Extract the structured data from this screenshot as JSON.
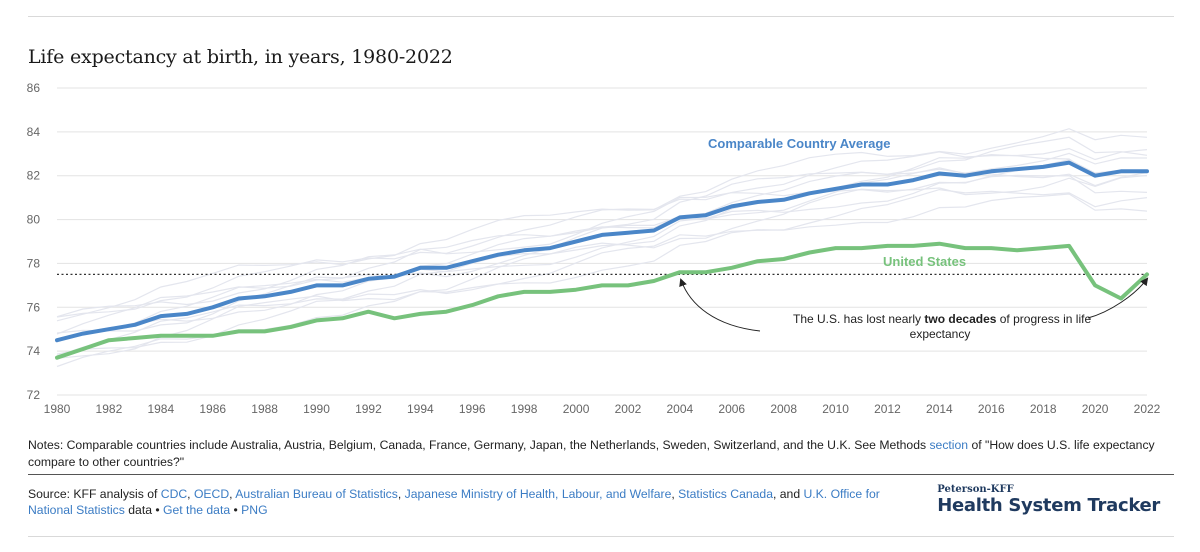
{
  "title": "Life expectancy at birth, in years, 1980-2022",
  "chart_data": {
    "type": "line",
    "title": "Life expectancy at birth, in years, 1980-2022",
    "xlim": [
      1980,
      2022
    ],
    "ylim": [
      72,
      86
    ],
    "x_ticks": [
      1980,
      1982,
      1984,
      1986,
      1988,
      1990,
      1992,
      1994,
      1996,
      1998,
      2000,
      2002,
      2004,
      2006,
      2008,
      2010,
      2012,
      2014,
      2016,
      2018,
      2020,
      2022
    ],
    "y_ticks": [
      72,
      74,
      76,
      78,
      80,
      82,
      84,
      86
    ],
    "grid": "horizontal",
    "reference_line": {
      "y": 77.5,
      "style": "dotted"
    },
    "series": [
      {
        "name": "Comparable Country Average",
        "color": "#4a86c8",
        "x": [
          1980,
          1981,
          1982,
          1983,
          1984,
          1985,
          1986,
          1987,
          1988,
          1989,
          1990,
          1991,
          1992,
          1993,
          1994,
          1995,
          1996,
          1997,
          1998,
          1999,
          2000,
          2001,
          2002,
          2003,
          2004,
          2005,
          2006,
          2007,
          2008,
          2009,
          2010,
          2011,
          2012,
          2013,
          2014,
          2015,
          2016,
          2017,
          2018,
          2019,
          2020,
          2021,
          2022
        ],
        "values": [
          74.5,
          74.8,
          75.0,
          75.2,
          75.6,
          75.7,
          76.0,
          76.4,
          76.5,
          76.7,
          77.0,
          77.0,
          77.3,
          77.4,
          77.8,
          77.8,
          78.1,
          78.4,
          78.6,
          78.7,
          79.0,
          79.3,
          79.4,
          79.5,
          80.1,
          80.2,
          80.6,
          80.8,
          80.9,
          81.2,
          81.4,
          81.6,
          81.6,
          81.8,
          82.1,
          82.0,
          82.2,
          82.3,
          82.4,
          82.6,
          82.0,
          82.2,
          82.2
        ]
      },
      {
        "name": "United States",
        "color": "#77c27c",
        "x": [
          1980,
          1981,
          1982,
          1983,
          1984,
          1985,
          1986,
          1987,
          1988,
          1989,
          1990,
          1991,
          1992,
          1993,
          1994,
          1995,
          1996,
          1997,
          1998,
          1999,
          2000,
          2001,
          2002,
          2003,
          2004,
          2005,
          2006,
          2007,
          2008,
          2009,
          2010,
          2011,
          2012,
          2013,
          2014,
          2015,
          2016,
          2017,
          2018,
          2019,
          2020,
          2021,
          2022
        ],
        "values": [
          73.7,
          74.1,
          74.5,
          74.6,
          74.7,
          74.7,
          74.7,
          74.9,
          74.9,
          75.1,
          75.4,
          75.5,
          75.8,
          75.5,
          75.7,
          75.8,
          76.1,
          76.5,
          76.7,
          76.7,
          76.8,
          77.0,
          77.0,
          77.2,
          77.6,
          77.6,
          77.8,
          78.1,
          78.2,
          78.5,
          78.7,
          78.7,
          78.8,
          78.8,
          78.9,
          78.7,
          78.7,
          78.6,
          78.7,
          78.8,
          77.0,
          76.4,
          77.5
        ]
      }
    ],
    "background_series_count": 11,
    "annotations": {
      "avg_label": "Comparable Country Average",
      "us_label": "United States",
      "note_before": "The U.S. has lost nearly ",
      "note_bold": "two decades",
      "note_after": " of progress in life",
      "note_line2": "expectancy"
    }
  },
  "notes": {
    "prefix": "Notes: Comparable countries include Australia, Austria, Belgium, Canada, France, Germany, Japan, the Netherlands, Sweden, Switzerland, and the U.K. See Methods ",
    "link": "section",
    "suffix": " of \"How does U.S. life expectancy compare to other countries?\""
  },
  "source": {
    "prefix": "Source: KFF analysis of ",
    "links": [
      "CDC",
      "OECD",
      "Australian Bureau of Statistics",
      "Japanese Ministry of Health, Labour, and Welfare",
      "Statistics Canada",
      "U.K. Office for National Statistics"
    ],
    "sep": ", ",
    "and": ", and ",
    "data_text": " data • ",
    "get_data": "Get the data",
    "bullet": " • ",
    "png": "PNG"
  },
  "brand": {
    "small": "Peterson-KFF",
    "big": "Health System Tracker"
  }
}
